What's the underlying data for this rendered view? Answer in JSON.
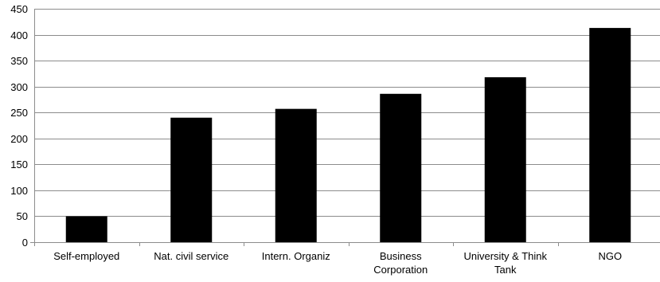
{
  "chart_data": {
    "type": "bar",
    "title": "",
    "xlabel": "",
    "ylabel": "",
    "categories": [
      [
        "Self-employed"
      ],
      [
        "Nat. civil service"
      ],
      [
        "Intern. Organiz"
      ],
      [
        "Business",
        "Corporation"
      ],
      [
        "University & Think",
        "Tank"
      ],
      [
        "NGO"
      ]
    ],
    "values": [
      50,
      240,
      257,
      286,
      318,
      413
    ],
    "ylim": [
      0,
      450
    ],
    "yticks": [
      "0",
      "50",
      "100",
      "150",
      "200",
      "250",
      "300",
      "350",
      "400",
      "450"
    ],
    "grid": true,
    "legend": "none",
    "colors": {
      "bar": "#000000",
      "grid": "#8c8c8c",
      "background": "#ffffff"
    }
  }
}
